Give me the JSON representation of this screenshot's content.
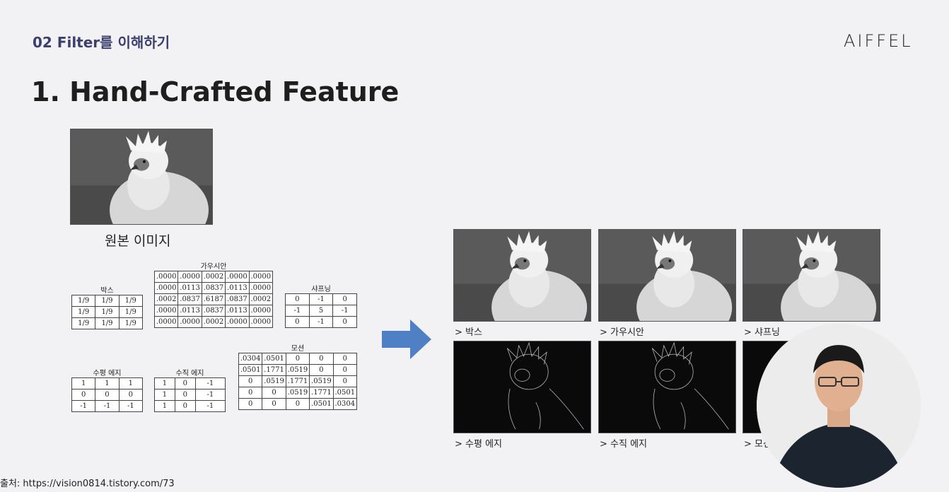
{
  "header": {
    "section_title": "02 Filter를 이해하기",
    "brand": "AIFFEL"
  },
  "main": {
    "title": "1. Hand-Crafted Feature"
  },
  "original": {
    "caption": "원본 이미지"
  },
  "kernels": {
    "box": {
      "title": "박스",
      "rows": [
        [
          "1/9",
          "1/9",
          "1/9"
        ],
        [
          "1/9",
          "1/9",
          "1/9"
        ],
        [
          "1/9",
          "1/9",
          "1/9"
        ]
      ]
    },
    "gaussian": {
      "title": "가우시안",
      "rows": [
        [
          ".0000",
          ".0000",
          ".0002",
          ".0000",
          ".0000"
        ],
        [
          ".0000",
          ".0113",
          ".0837",
          ".0113",
          ".0000"
        ],
        [
          ".0002",
          ".0837",
          ".6187",
          ".0837",
          ".0002"
        ],
        [
          ".0000",
          ".0113",
          ".0837",
          ".0113",
          ".0000"
        ],
        [
          ".0000",
          ".0000",
          ".0002",
          ".0000",
          ".0000"
        ]
      ]
    },
    "sharpen": {
      "title": "샤프닝",
      "rows": [
        [
          "0",
          "-1",
          "0"
        ],
        [
          "-1",
          "5",
          "-1"
        ],
        [
          "0",
          "-1",
          "0"
        ]
      ]
    },
    "horizontal_edge": {
      "title": "수평 에지",
      "rows": [
        [
          "1",
          "1",
          "1"
        ],
        [
          "0",
          "0",
          "0"
        ],
        [
          "-1",
          "-1",
          "-1"
        ]
      ]
    },
    "vertical_edge": {
      "title": "수직 에지",
      "rows": [
        [
          "1",
          "0",
          "-1"
        ],
        [
          "1",
          "0",
          "-1"
        ],
        [
          "1",
          "0",
          "-1"
        ]
      ]
    },
    "motion": {
      "title": "모션",
      "rows": [
        [
          ".0304",
          ".0501",
          "0",
          "0",
          "0"
        ],
        [
          ".0501",
          ".1771",
          ".0519",
          "0",
          "0"
        ],
        [
          "0",
          ".0519",
          ".1771",
          ".0519",
          "0"
        ],
        [
          "0",
          "0",
          ".0519",
          ".1771",
          ".0501"
        ],
        [
          "0",
          "0",
          "0",
          ".0501",
          ".0304"
        ]
      ]
    }
  },
  "results": {
    "box": "> 박스",
    "gaussian": "> 가우시안",
    "sharpen": "> 샤프닝",
    "horizontal_edge": "> 수평 에지",
    "vertical_edge": "> 수직 에지",
    "motion": "> 모션"
  },
  "source": "출처: https://vision0814.tistory.com/73",
  "colors": {
    "accent": "#3b3f6e",
    "arrow": "#4f7fc4"
  }
}
